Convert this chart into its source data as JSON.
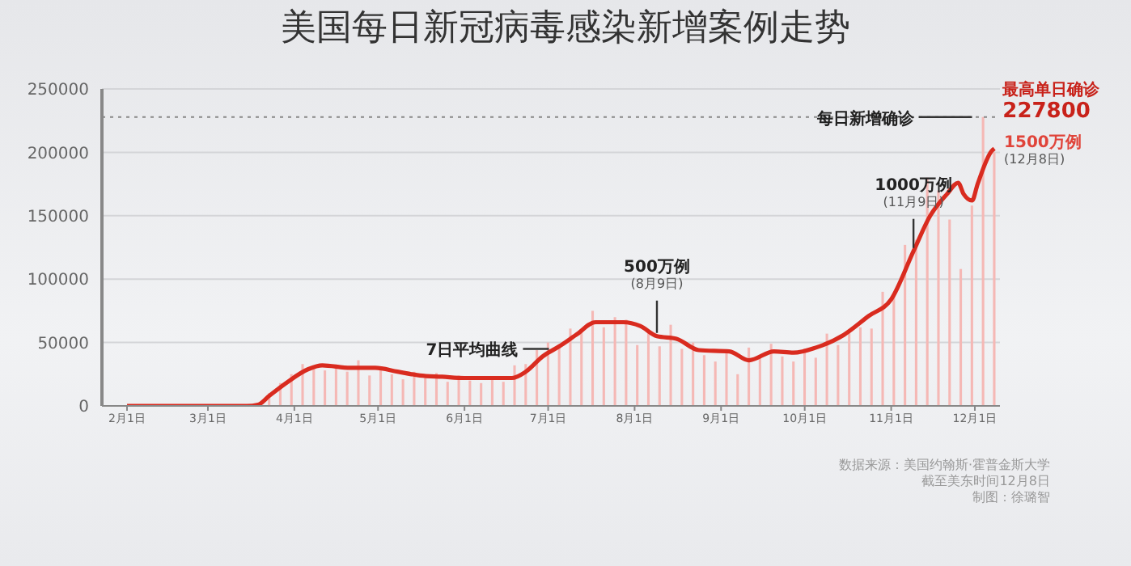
{
  "chart_data": {
    "type": "bar",
    "title": "美国每日新冠病毒感染新增案例走势",
    "xlim": [
      "--01-23",
      "--12-10"
    ],
    "xticks": [
      {
        "value": "--02-01",
        "label": "2月1日"
      },
      {
        "value": "--03-01",
        "label": "3月1日"
      },
      {
        "value": "--04-01",
        "label": "4月1日"
      },
      {
        "value": "--05-01",
        "label": "5月1日"
      },
      {
        "value": "--06-01",
        "label": "6月1日"
      },
      {
        "value": "--07-01",
        "label": "7月1日"
      },
      {
        "value": "--08-01",
        "label": "8月1日"
      },
      {
        "value": "--09-01",
        "label": "9月1日"
      },
      {
        "value": "--10-01",
        "label": "10月1日"
      },
      {
        "value": "--11-01",
        "label": "11月1日"
      },
      {
        "value": "--12-01",
        "label": "12月1日"
      }
    ],
    "ylim": [
      0,
      250000
    ],
    "yticks": [
      0,
      50000,
      100000,
      150000,
      200000,
      250000
    ],
    "grid": "y",
    "series": [
      {
        "color": "#f5b8b5",
        "x": [
          "--02-01",
          "--02-15",
          "--03-01",
          "--03-10",
          "--03-15",
          "--03-19",
          "--03-23",
          "--03-27",
          "--03-31",
          "--04-04",
          "--04-08",
          "--04-12",
          "--04-16",
          "--04-20",
          "--04-24",
          "--04-28",
          "--05-02",
          "--05-06",
          "--05-10",
          "--05-14",
          "--05-18",
          "--05-22",
          "--05-26",
          "--05-30",
          "--06-03",
          "--06-07",
          "--06-11",
          "--06-15",
          "--06-19",
          "--06-23",
          "--06-27",
          "--07-01",
          "--07-05",
          "--07-09",
          "--07-13",
          "--07-17",
          "--07-21",
          "--07-25",
          "--07-29",
          "--08-02",
          "--08-06",
          "--08-10",
          "--08-14",
          "--08-18",
          "--08-22",
          "--08-26",
          "--08-30",
          "--09-03",
          "--09-07",
          "--09-11",
          "--09-15",
          "--09-19",
          "--09-23",
          "--09-27",
          "--10-01",
          "--10-05",
          "--10-09",
          "--10-13",
          "--10-17",
          "--10-21",
          "--10-25",
          "--10-29",
          "--11-02",
          "--11-06",
          "--11-10",
          "--11-14",
          "--11-18",
          "--11-22",
          "--11-26",
          "--11-30",
          "--12-04",
          "--12-08"
        ],
        "values": [
          0,
          0,
          0,
          0,
          null,
          null,
          10000,
          18000,
          25000,
          33000,
          31000,
          28000,
          31000,
          27000,
          36000,
          24000,
          30000,
          25000,
          21000,
          27000,
          22000,
          26000,
          19000,
          24000,
          20000,
          18000,
          23000,
          19000,
          32000,
          33000,
          44000,
          50000,
          46000,
          61000,
          58000,
          75000,
          62000,
          70000,
          68000,
          48000,
          58000,
          47000,
          64000,
          45000,
          50000,
          40000,
          35000,
          42000,
          25000,
          46000,
          38000,
          49000,
          39000,
          35000,
          45000,
          38000,
          57000,
          48000,
          58000,
          62000,
          61000,
          90000,
          87000,
          127000,
          131000,
          180000,
          170000,
          147000,
          108000,
          158000,
          227800,
          200000
        ]
      },
      {
        "type": "line",
        "color": "#d92b1f",
        "x": [
          "--02-01",
          "--03-01",
          "--03-15",
          "--03-19",
          "--03-23",
          "--03-29",
          "--04-06",
          "--04-11",
          "--04-21",
          "--04-30",
          "--05-08",
          "--05-16",
          "--05-24",
          "--06-01",
          "--06-12",
          "--06-18",
          "--06-23",
          "--06-29",
          "--07-05",
          "--07-11",
          "--07-18",
          "--07-28",
          "--08-03",
          "--08-09",
          "--08-16",
          "--08-24",
          "--09-04",
          "--09-11",
          "--09-20",
          "--09-27",
          "--10-05",
          "--10-15",
          "--10-24",
          "--11-01",
          "--11-09",
          "--11-15",
          "--11-21",
          "--11-25",
          "--11-27",
          "--11-30",
          "--12-02",
          "--12-07",
          "--12-08"
        ],
        "values": [
          0,
          0,
          0,
          1000,
          8000,
          18000,
          29000,
          32000,
          30000,
          30000,
          27000,
          24000,
          23000,
          22000,
          22000,
          22000,
          27000,
          39000,
          47000,
          56000,
          66000,
          66000,
          63000,
          55000,
          53000,
          44000,
          43000,
          36000,
          43000,
          42000,
          46000,
          56000,
          71000,
          84000,
          122000,
          150000,
          167000,
          176000,
          167000,
          162000,
          175000,
          201000,
          203000
        ]
      }
    ],
    "ref_lines": [
      {
        "axis": "y",
        "value": 227800,
        "line_style": "dotted",
        "color": "#888888"
      }
    ],
    "annotations": [
      {
        "text": "7日平均曲线",
        "x": "--07-03",
        "y": 45000
      },
      {
        "text": "每日新增确诊",
        "x": "--11-30",
        "y": 227800
      },
      {
        "text": "最高单日确诊\n227800",
        "x": "--12-04",
        "y": 227800
      },
      {
        "text": "500万例\n(8月9日)",
        "x": "--08-09",
        "y": 55000
      },
      {
        "text": "1000万例\n(11月9日)",
        "x": "--11-09",
        "y": 122000
      },
      {
        "text": "1500万例\n(12月8日)",
        "x": "--12-08",
        "y": 203000
      },
      "数据来源：美国约翰斯·霍普金斯大学",
      "截至美东时间12月8日",
      "制图：徐璐智"
    ]
  }
}
